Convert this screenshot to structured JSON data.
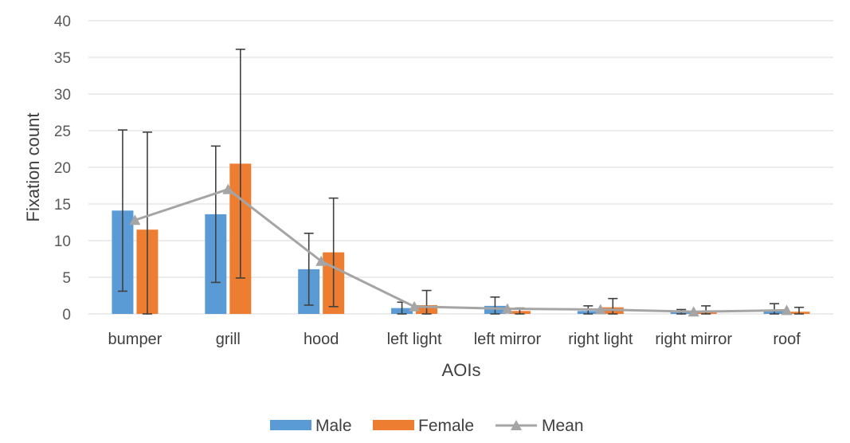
{
  "chart_data": {
    "type": "bar",
    "categories": [
      "bumper",
      "grill",
      "hood",
      "left light",
      "left mirror",
      "right light",
      "right mirror",
      "roof"
    ],
    "series": [
      {
        "name": "Male",
        "kind": "bar",
        "color": "#5B9BD5",
        "values": [
          14.1,
          13.6,
          6.1,
          0.8,
          1.1,
          0.4,
          0.3,
          0.6
        ],
        "error": [
          11.0,
          9.3,
          4.9,
          0.8,
          1.2,
          0.7,
          0.3,
          0.8
        ]
      },
      {
        "name": "Female",
        "kind": "bar",
        "color": "#ED7D31",
        "values": [
          11.5,
          20.5,
          8.4,
          1.2,
          0.4,
          0.9,
          0.2,
          0.3
        ],
        "error": [
          13.3,
          15.6,
          7.4,
          2.0,
          0.4,
          1.2,
          0.9,
          0.6
        ]
      },
      {
        "name": "Mean",
        "kind": "line",
        "color": "#A5A5A5",
        "values": [
          12.8,
          17.0,
          7.2,
          1.0,
          0.7,
          0.6,
          0.3,
          0.5
        ]
      }
    ],
    "xlabel": "AOIs",
    "ylabel": "Fixation count",
    "ylim": [
      0,
      40
    ],
    "yticks": [
      "0",
      "5",
      "10",
      "15",
      "20",
      "25",
      "30",
      "35",
      "40"
    ],
    "grid": true,
    "legend": "bottom"
  }
}
